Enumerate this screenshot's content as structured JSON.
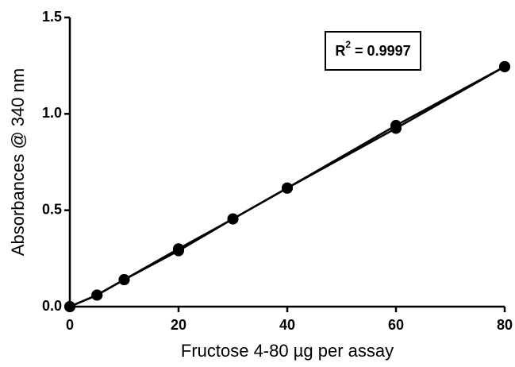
{
  "chart_data": {
    "type": "line",
    "xlabel": "Fructose 4-80 µg per assay",
    "ylabel": "Absorbances @ 340 nm",
    "annotation": {
      "base": "R",
      "superscript": "2",
      "text": " = 0.9997"
    },
    "x": [
      0,
      5,
      10,
      20,
      30,
      40,
      60,
      80
    ],
    "series": [
      {
        "color": "#000000",
        "values": [
          0,
          0.06,
          0.14,
          0.3,
          0.455,
          0.615,
          0.94,
          1.245
        ]
      },
      {
        "color": "#000000",
        "values": [
          0,
          0.06,
          0.14,
          0.29,
          0.455,
          0.615,
          0.925,
          1.245
        ]
      }
    ],
    "xlim": [
      0,
      80
    ],
    "xticks": [
      0,
      20,
      40,
      60,
      80
    ],
    "ylim": [
      0,
      1.5
    ],
    "yticks": [
      {
        "value": 0,
        "label": "0.0"
      },
      {
        "value": 0.5,
        "label": "0.5"
      },
      {
        "value": 1,
        "label": "1.0"
      },
      {
        "value": 1.5,
        "label": "1.5"
      }
    ],
    "grid": false
  }
}
